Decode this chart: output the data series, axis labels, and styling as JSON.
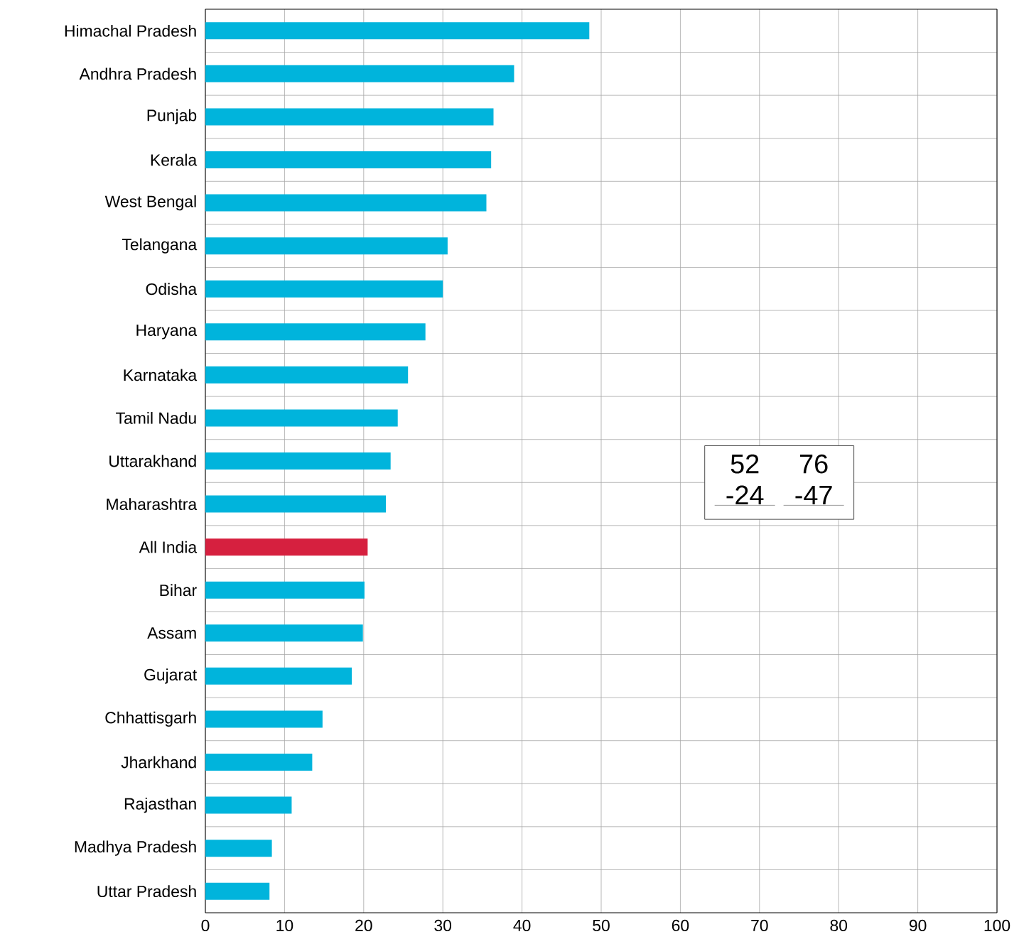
{
  "chart_data": {
    "type": "bar",
    "orientation": "horizontal",
    "categories": [
      "Himachal Pradesh",
      "Andhra Pradesh",
      "Punjab",
      "Kerala",
      "West Bengal",
      "Telangana",
      "Odisha",
      "Haryana",
      "Karnataka",
      "Tamil Nadu",
      "Uttarakhand",
      "Maharashtra",
      "All India",
      "Bihar",
      "Assam",
      "Gujarat",
      "Chhattisgarh",
      "Jharkhand",
      "Rajasthan",
      "Madhya Pradesh",
      "Uttar Pradesh"
    ],
    "values": [
      48.5,
      39.0,
      36.4,
      36.1,
      35.5,
      30.6,
      30.0,
      27.8,
      25.6,
      24.3,
      23.4,
      22.8,
      20.5,
      20.1,
      19.9,
      18.5,
      14.8,
      13.5,
      10.9,
      8.4,
      8.1
    ],
    "colors": [
      "#00b4dc",
      "#00b4dc",
      "#00b4dc",
      "#00b4dc",
      "#00b4dc",
      "#00b4dc",
      "#00b4dc",
      "#00b4dc",
      "#00b4dc",
      "#00b4dc",
      "#00b4dc",
      "#00b4dc",
      "#d6203f",
      "#00b4dc",
      "#00b4dc",
      "#00b4dc",
      "#00b4dc",
      "#00b4dc",
      "#00b4dc",
      "#00b4dc",
      "#00b4dc"
    ],
    "xlim": [
      0,
      100
    ],
    "xticks": [
      0,
      10,
      20,
      30,
      40,
      50,
      60,
      70,
      80,
      90,
      100
    ],
    "grid": true,
    "annotations": [
      "52",
      "76",
      "-24",
      "-47"
    ]
  }
}
